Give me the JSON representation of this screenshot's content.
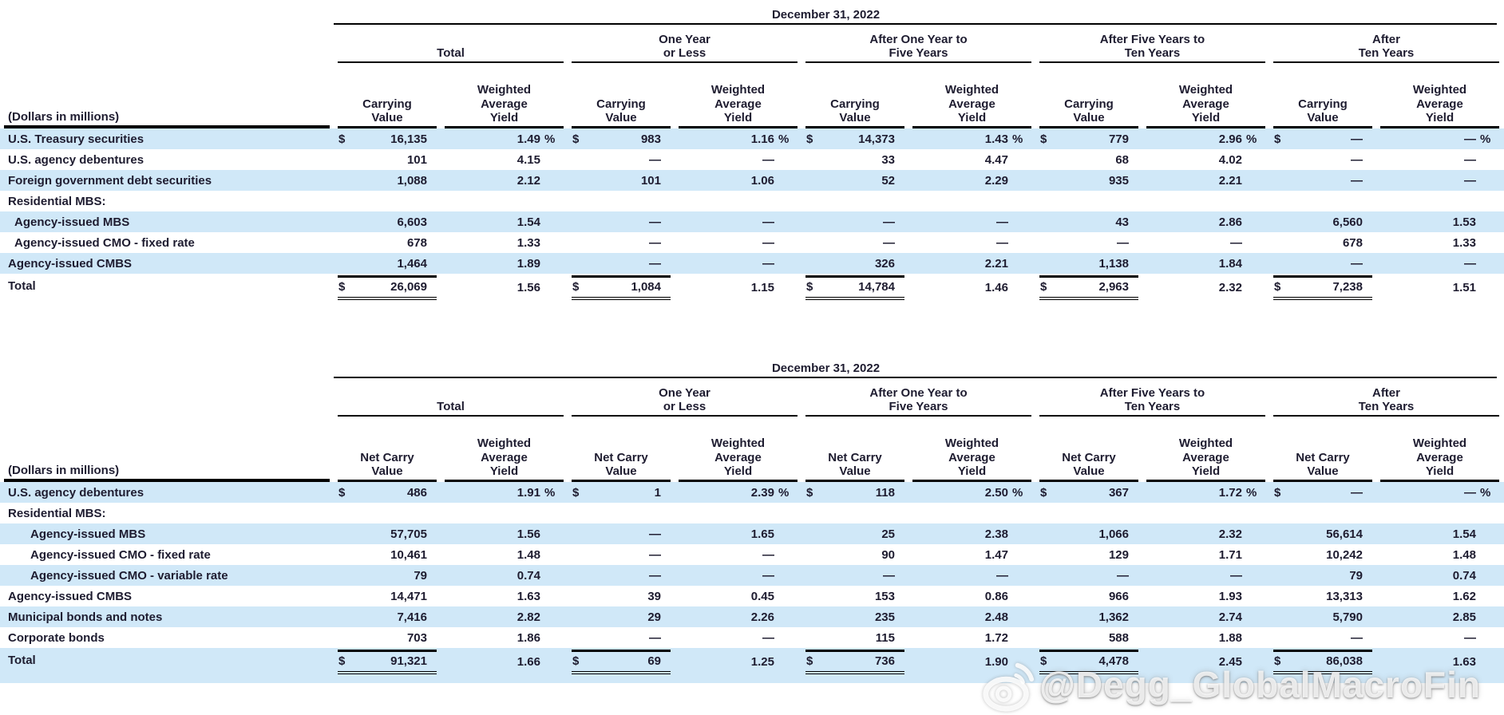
{
  "glyphs": {
    "dollar": "$",
    "percent": "%"
  },
  "colors": {
    "row_shade": "#d0e8f8",
    "text": "#1e1c30",
    "rule": "#000000",
    "background": "#ffffff",
    "watermark": "#ffffff"
  },
  "watermark": {
    "text": "@Degg_GlobalMacroFin",
    "icon": "weibo-icon"
  },
  "tables": [
    {
      "name": "securities-by-maturity-carrying-value",
      "date_header": "December 31, 2022",
      "left_header": "(Dollars in millions)",
      "groups": [
        {
          "label": "Total",
          "cols": [
            "Carrying\nValue",
            "Weighted\nAverage\nYield"
          ]
        },
        {
          "label": "One Year\nor Less",
          "cols": [
            "Carrying\nValue",
            "Weighted\nAverage\nYield"
          ]
        },
        {
          "label": "After One Year to\nFive Years",
          "cols": [
            "Carrying\nValue",
            "Weighted\nAverage\nYield"
          ]
        },
        {
          "label": "After Five Years to\nTen Years",
          "cols": [
            "Carrying\nValue",
            "Weighted\nAverage\nYield"
          ]
        },
        {
          "label": "After\nTen Years",
          "cols": [
            "Carrying\nValue",
            "Weighted\nAverage\nYield"
          ]
        }
      ],
      "rows": [
        {
          "label": "U.S. Treasury securities",
          "indent": 0,
          "shaded": true,
          "dollar": true,
          "pct": true,
          "total": false,
          "cells": [
            "16,135",
            "1.49",
            "983",
            "1.16",
            "14,373",
            "1.43",
            "779",
            "2.96",
            "—",
            "—"
          ]
        },
        {
          "label": "U.S. agency debentures",
          "indent": 0,
          "shaded": false,
          "dollar": false,
          "pct": false,
          "total": false,
          "cells": [
            "101",
            "4.15",
            "—",
            "—",
            "33",
            "4.47",
            "68",
            "4.02",
            "—",
            "—"
          ]
        },
        {
          "label": "Foreign government debt securities",
          "indent": 0,
          "shaded": true,
          "dollar": false,
          "pct": false,
          "total": false,
          "cells": [
            "1,088",
            "2.12",
            "101",
            "1.06",
            "52",
            "2.29",
            "935",
            "2.21",
            "—",
            "—"
          ]
        },
        {
          "label": "Residential MBS:",
          "indent": 0,
          "shaded": false,
          "dollar": false,
          "pct": false,
          "total": false,
          "cells": [
            "",
            "",
            "",
            "",
            "",
            "",
            "",
            "",
            "",
            ""
          ]
        },
        {
          "label": "Agency-issued MBS",
          "indent": 1,
          "shaded": true,
          "dollar": false,
          "pct": false,
          "total": false,
          "cells": [
            "6,603",
            "1.54",
            "—",
            "—",
            "—",
            "—",
            "43",
            "2.86",
            "6,560",
            "1.53"
          ]
        },
        {
          "label": "Agency-issued CMO - fixed rate",
          "indent": 1,
          "shaded": false,
          "dollar": false,
          "pct": false,
          "total": false,
          "cells": [
            "678",
            "1.33",
            "—",
            "—",
            "—",
            "—",
            "—",
            "—",
            "678",
            "1.33"
          ]
        },
        {
          "label": "Agency-issued CMBS",
          "indent": 0,
          "shaded": true,
          "dollar": false,
          "pct": false,
          "total": false,
          "cells": [
            "1,464",
            "1.89",
            "—",
            "—",
            "326",
            "2.21",
            "1,138",
            "1.84",
            "—",
            "—"
          ]
        },
        {
          "label": "Total",
          "indent": 0,
          "shaded": false,
          "dollar": true,
          "pct": false,
          "total": true,
          "cells": [
            "26,069",
            "1.56",
            "1,084",
            "1.15",
            "14,784",
            "1.46",
            "2,963",
            "2.32",
            "7,238",
            "1.51"
          ]
        }
      ]
    },
    {
      "name": "securities-by-maturity-net-carry-value",
      "date_header": "December 31, 2022",
      "left_header": "(Dollars in millions)",
      "groups": [
        {
          "label": "Total",
          "cols": [
            "Net Carry\nValue",
            "Weighted\nAverage\nYield"
          ]
        },
        {
          "label": "One Year\nor Less",
          "cols": [
            "Net Carry\nValue",
            "Weighted\nAverage\nYield"
          ]
        },
        {
          "label": "After One Year to\nFive Years",
          "cols": [
            "Net Carry\nValue",
            "Weighted\nAverage\nYield"
          ]
        },
        {
          "label": "After Five Years to\nTen Years",
          "cols": [
            "Net Carry\nValue",
            "Weighted\nAverage\nYield"
          ]
        },
        {
          "label": "After\nTen Years",
          "cols": [
            "Net Carry\nValue",
            "Weighted\nAverage\nYield"
          ]
        }
      ],
      "rows": [
        {
          "label": "U.S. agency debentures",
          "indent": 0,
          "shaded": true,
          "dollar": true,
          "pct": true,
          "total": false,
          "cells": [
            "486",
            "1.91",
            "1",
            "2.39",
            "118",
            "2.50",
            "367",
            "1.72",
            "—",
            "—"
          ]
        },
        {
          "label": "Residential MBS:",
          "indent": 0,
          "shaded": false,
          "dollar": false,
          "pct": false,
          "total": false,
          "cells": [
            "",
            "",
            "",
            "",
            "",
            "",
            "",
            "",
            "",
            ""
          ]
        },
        {
          "label": "Agency-issued MBS",
          "indent": 2,
          "shaded": true,
          "dollar": false,
          "pct": false,
          "total": false,
          "cells": [
            "57,705",
            "1.56",
            "—",
            "1.65",
            "25",
            "2.38",
            "1,066",
            "2.32",
            "56,614",
            "1.54"
          ]
        },
        {
          "label": "Agency-issued CMO - fixed rate",
          "indent": 2,
          "shaded": false,
          "dollar": false,
          "pct": false,
          "total": false,
          "cells": [
            "10,461",
            "1.48",
            "—",
            "—",
            "90",
            "1.47",
            "129",
            "1.71",
            "10,242",
            "1.48"
          ]
        },
        {
          "label": "Agency-issued CMO - variable rate",
          "indent": 2,
          "shaded": true,
          "dollar": false,
          "pct": false,
          "total": false,
          "cells": [
            "79",
            "0.74",
            "—",
            "—",
            "—",
            "—",
            "—",
            "—",
            "79",
            "0.74"
          ]
        },
        {
          "label": "Agency-issued CMBS",
          "indent": 0,
          "shaded": false,
          "dollar": false,
          "pct": false,
          "total": false,
          "cells": [
            "14,471",
            "1.63",
            "39",
            "0.45",
            "153",
            "0.86",
            "966",
            "1.93",
            "13,313",
            "1.62"
          ]
        },
        {
          "label": "Municipal bonds and notes",
          "indent": 0,
          "shaded": true,
          "dollar": false,
          "pct": false,
          "total": false,
          "cells": [
            "7,416",
            "2.82",
            "29",
            "2.26",
            "235",
            "2.48",
            "1,362",
            "2.74",
            "5,790",
            "2.85"
          ]
        },
        {
          "label": "Corporate bonds",
          "indent": 0,
          "shaded": false,
          "dollar": false,
          "pct": false,
          "total": false,
          "cells": [
            "703",
            "1.86",
            "—",
            "—",
            "115",
            "1.72",
            "588",
            "1.88",
            "—",
            "—"
          ]
        },
        {
          "label": "Total",
          "indent": 0,
          "shaded": true,
          "dollar": true,
          "pct": false,
          "total": true,
          "cells": [
            "91,321",
            "1.66",
            "69",
            "1.25",
            "736",
            "1.90",
            "4,478",
            "2.45",
            "86,038",
            "1.63"
          ]
        }
      ]
    }
  ]
}
